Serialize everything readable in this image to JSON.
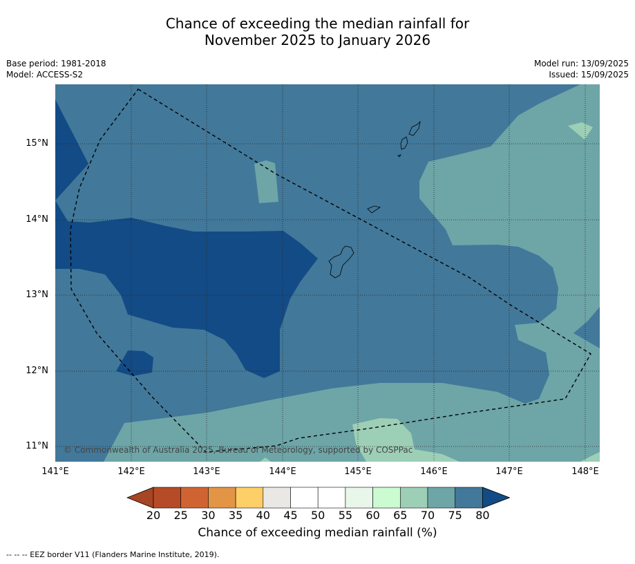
{
  "title_line1": "Chance of exceeding the median rainfall for",
  "title_line2": "November 2025 to January 2026",
  "meta_left": {
    "base_period": "Base period: 1981-2018",
    "model": "Model: ACCESS-S2"
  },
  "meta_right": {
    "model_run": "Model run: 13/09/2025",
    "issued": "Issued: 15/09/2025"
  },
  "map": {
    "lat_labels": [
      "15°N",
      "14°N",
      "13°N",
      "12°N",
      "11°N"
    ],
    "lon_labels": [
      "141°E",
      "142°E",
      "143°E",
      "144°E",
      "145°E",
      "146°E",
      "147°E",
      "148°E"
    ],
    "copyright": "© Commonwealth of Australia 2025, Bureau of Meteorology, supported by COSPPac",
    "colors": {
      "c65_70": "#9dcfb6",
      "c70_75": "#6ea5a7",
      "c75_80": "#427899",
      "c80_plus": "#134b86",
      "land": "#427899"
    }
  },
  "colorbar": {
    "ticks": [
      "20",
      "25",
      "30",
      "35",
      "40",
      "45",
      "50",
      "55",
      "60",
      "65",
      "70",
      "75",
      "80"
    ],
    "colors": [
      "#a74524",
      "#b64c27",
      "#cf6432",
      "#e39546",
      "#fece67",
      "#e9e8e4",
      "#ffffff",
      "#ffffff",
      "#e9f7ea",
      "#cbfbd1",
      "#9dcfb6",
      "#6ea5a7",
      "#427899",
      "#134b86"
    ],
    "label": "Chance of exceeding median rainfall (%)"
  },
  "footnote": "--  --  -- EEZ border V11 (Flanders Marine Institute, 2019)."
}
